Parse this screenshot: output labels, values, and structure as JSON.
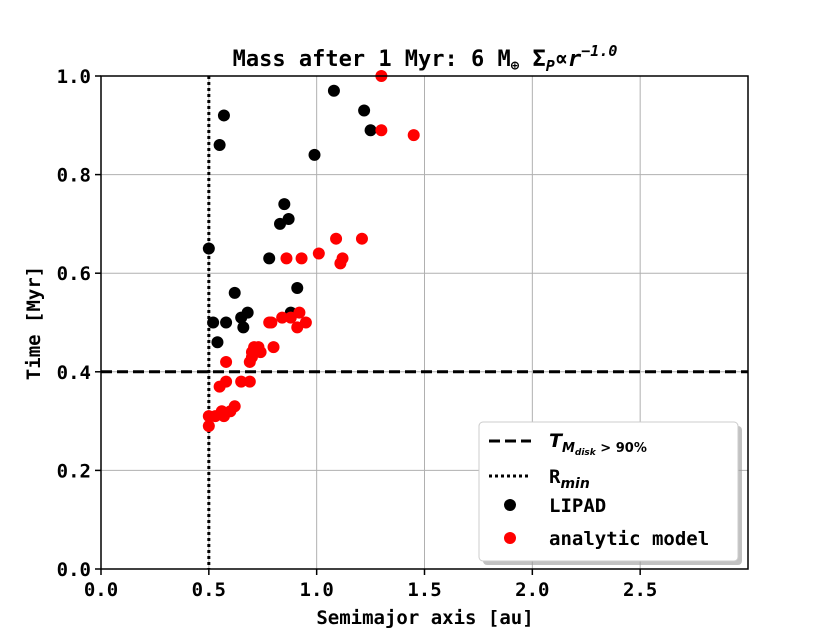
{
  "chart_data": {
    "type": "scatter",
    "title_parts": {
      "prefix": "Mass after 1 Myr: 6 M",
      "earth_symbol": "⊕",
      "sigma": "Σ",
      "sigma_sub": "P",
      "propto": "∝",
      "r": "r",
      "exponent": "−1.0"
    },
    "xlabel": "Semimajor axis [au]",
    "ylabel": "Time [Myr]",
    "xlim": [
      0.0,
      3.0
    ],
    "ylim": [
      0.0,
      1.0
    ],
    "xticks": [
      0.0,
      0.5,
      1.0,
      1.5,
      2.0,
      2.5
    ],
    "yticks": [
      0.0,
      0.2,
      0.4,
      0.6,
      0.8,
      1.0
    ],
    "xtick_labels": [
      "0.0",
      "0.5",
      "1.0",
      "1.5",
      "2.0",
      "2.5"
    ],
    "ytick_labels": [
      "0.0",
      "0.2",
      "0.4",
      "0.6",
      "0.8",
      "1.0"
    ],
    "grid": true,
    "hline": {
      "y": 0.4,
      "style": "dashed",
      "color": "#000000"
    },
    "vline": {
      "x": 0.5,
      "style": "dotted",
      "color": "#000000"
    },
    "series": [
      {
        "name": "LIPAD",
        "color": "#000000",
        "points": [
          [
            0.5,
            0.65
          ],
          [
            0.52,
            0.5
          ],
          [
            0.54,
            0.46
          ],
          [
            0.55,
            0.86
          ],
          [
            0.57,
            0.92
          ],
          [
            0.58,
            0.5
          ],
          [
            0.62,
            0.56
          ],
          [
            0.65,
            0.51
          ],
          [
            0.66,
            0.49
          ],
          [
            0.68,
            0.52
          ],
          [
            0.78,
            0.63
          ],
          [
            0.83,
            0.7
          ],
          [
            0.85,
            0.74
          ],
          [
            0.87,
            0.71
          ],
          [
            0.88,
            0.52
          ],
          [
            0.91,
            0.57
          ],
          [
            0.99,
            0.84
          ],
          [
            1.08,
            0.97
          ],
          [
            1.22,
            0.93
          ],
          [
            1.25,
            0.89
          ]
        ]
      },
      {
        "name": "analytic model",
        "color": "#ff0000",
        "points": [
          [
            0.5,
            0.29
          ],
          [
            0.5,
            0.31
          ],
          [
            0.53,
            0.31
          ],
          [
            0.55,
            0.37
          ],
          [
            0.56,
            0.32
          ],
          [
            0.57,
            0.31
          ],
          [
            0.58,
            0.42
          ],
          [
            0.58,
            0.38
          ],
          [
            0.6,
            0.32
          ],
          [
            0.62,
            0.33
          ],
          [
            0.65,
            0.38
          ],
          [
            0.69,
            0.38
          ],
          [
            0.69,
            0.42
          ],
          [
            0.7,
            0.44
          ],
          [
            0.7,
            0.43
          ],
          [
            0.71,
            0.45
          ],
          [
            0.73,
            0.45
          ],
          [
            0.74,
            0.44
          ],
          [
            0.78,
            0.5
          ],
          [
            0.79,
            0.5
          ],
          [
            0.8,
            0.45
          ],
          [
            0.84,
            0.51
          ],
          [
            0.86,
            0.63
          ],
          [
            0.88,
            0.51
          ],
          [
            0.91,
            0.49
          ],
          [
            0.92,
            0.52
          ],
          [
            0.93,
            0.63
          ],
          [
            0.95,
            0.5
          ],
          [
            1.01,
            0.64
          ],
          [
            1.09,
            0.67
          ],
          [
            1.11,
            0.62
          ],
          [
            1.12,
            0.63
          ],
          [
            1.21,
            0.67
          ],
          [
            1.3,
            0.89
          ],
          [
            1.3,
            1.0
          ],
          [
            1.45,
            0.88
          ]
        ]
      }
    ],
    "legend": {
      "location": "lower-right",
      "entries": [
        {
          "kind": "dashed-line",
          "label_main": "T",
          "label_sub": "M",
          "label_subsub": "disk",
          "label_rest": " > 90%"
        },
        {
          "kind": "dotted-line",
          "label_main": "R",
          "label_sub": "min"
        },
        {
          "kind": "marker",
          "color": "#000000",
          "label": "LIPAD"
        },
        {
          "kind": "marker",
          "color": "#ff0000",
          "label": "analytic model"
        }
      ]
    }
  }
}
